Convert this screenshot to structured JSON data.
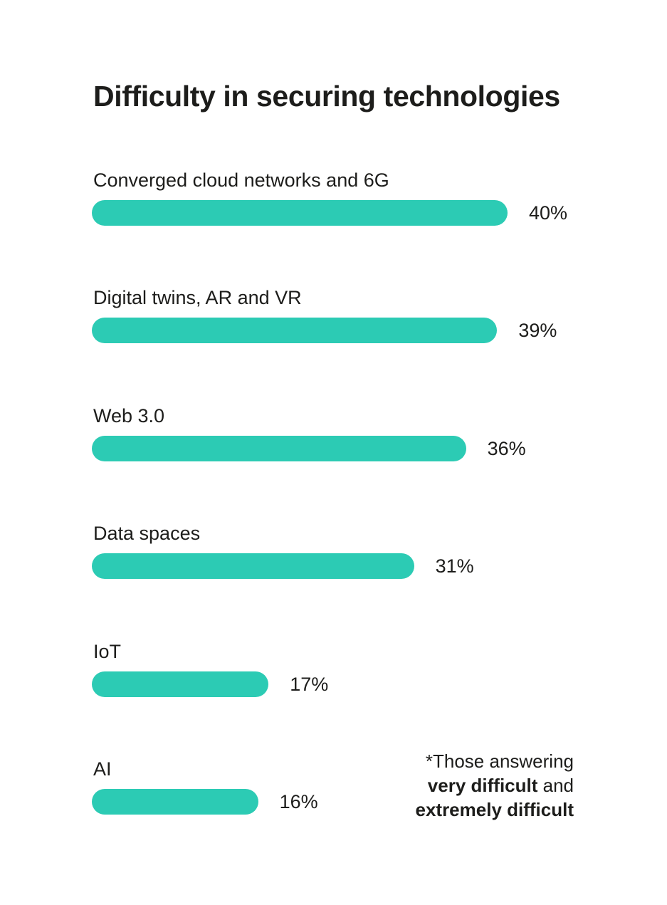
{
  "chart_data": {
    "type": "bar",
    "orientation": "horizontal",
    "title": "Difficulty in securing technologies",
    "categories": [
      "Converged cloud networks and 6G",
      "Digital twins, AR and VR",
      "Web 3.0",
      "Data spaces",
      "IoT",
      "AI"
    ],
    "values": [
      40,
      39,
      36,
      31,
      17,
      16
    ],
    "value_labels": [
      "40%",
      "39%",
      "36%",
      "31%",
      "17%",
      "16%"
    ],
    "unit": "%",
    "bar_color": "#2ccbb4",
    "text_color": "#1d1d1b",
    "grid": false,
    "legend": "none"
  },
  "footnote": {
    "line1": "*Those answering",
    "line2_bold": "very difficult",
    "line2_rest": " and",
    "line3_bold": "extremely difficult"
  }
}
